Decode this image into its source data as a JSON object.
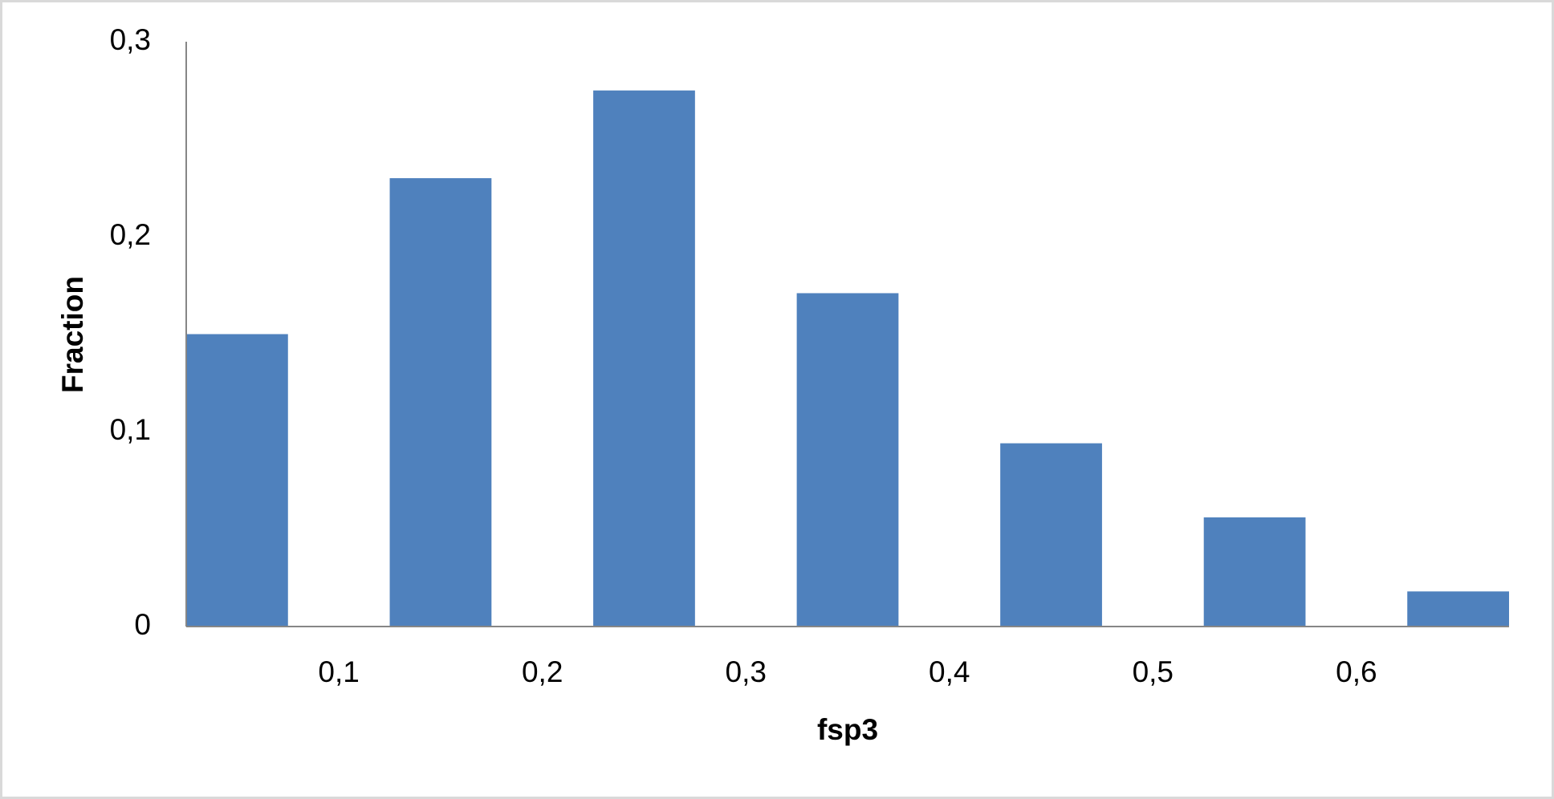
{
  "chart_data": {
    "type": "bar",
    "x_label": "fsp3",
    "y_label": "Fraction",
    "x": [
      0.05,
      0.15,
      0.25,
      0.35,
      0.45,
      0.55,
      0.65
    ],
    "values": [
      0.15,
      0.23,
      0.275,
      0.171,
      0.094,
      0.056,
      0.018
    ],
    "color": "#4f81bd",
    "xlim": [
      0.025,
      0.675
    ],
    "xticks": [
      {
        "value": 0.1,
        "label": "0,1"
      },
      {
        "value": 0.2,
        "label": "0,2"
      },
      {
        "value": 0.3,
        "label": "0,3"
      },
      {
        "value": 0.4,
        "label": "0,4"
      },
      {
        "value": 0.5,
        "label": "0,5"
      },
      {
        "value": 0.6,
        "label": "0,6"
      }
    ],
    "ylim": [
      0,
      0.3
    ],
    "yticks": [
      0,
      {
        "value": 0.1,
        "label": "0,1"
      },
      {
        "value": 0.2,
        "label": "0,2"
      },
      {
        "value": 0.3,
        "label": "0,3"
      }
    ],
    "grid": false
  }
}
